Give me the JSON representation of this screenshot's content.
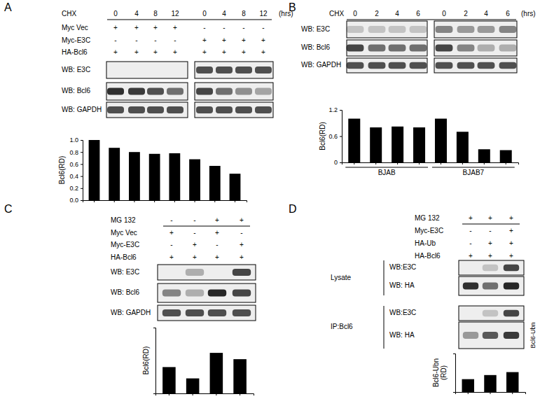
{
  "chart_data": [
    {
      "type": "bar",
      "ylabel": "Bcl6(RD)",
      "categories": [
        null,
        null,
        null,
        null,
        null,
        null,
        null,
        null
      ],
      "values": [
        1.0,
        0.87,
        0.8,
        0.77,
        0.78,
        0.68,
        0.57,
        0.44
      ],
      "color": "#000000",
      "ylim": [
        0,
        1
      ],
      "yticks": [
        {
          "value": 0,
          "label": "0.0"
        },
        0.2,
        0.4,
        0.6,
        0.8,
        {
          "value": 1,
          "label": "1.0"
        }
      ]
    },
    {
      "type": "bar",
      "ylabel": "Bcl6(RD)",
      "categories": [
        null,
        null,
        null,
        null,
        null,
        null,
        null,
        null
      ],
      "values": [
        1.0,
        0.8,
        0.82,
        0.8,
        1.0,
        0.7,
        0.3,
        0.28
      ],
      "color": "#000000",
      "ylim": [
        0,
        1.2
      ],
      "yticks": [
        0,
        0.6,
        1.2
      ]
    },
    {
      "type": "bar",
      "ylabel": "Bcl6(RD)",
      "categories": [
        null,
        null,
        null,
        null
      ],
      "values": [
        1.0,
        0.57,
        1.54,
        1.3
      ],
      "color": "#000000",
      "ylim": [
        0,
        2.5
      ],
      "yticks": [],
      "tick_labels": false
    },
    {
      "type": "bar",
      "ylabel": "Bcl6-Ubn (RD)",
      "categories": [
        null,
        null,
        null
      ],
      "values": [
        1.0,
        1.32,
        1.55
      ],
      "color": "#000000",
      "ylim": [
        0,
        3
      ],
      "yticks": [],
      "tick_labels": false
    }
  ],
  "figure": {
    "panels": [
      {
        "letter": "A",
        "header": {
          "label": "CHX",
          "values": [
            "0",
            "4",
            "8",
            "12",
            "0",
            "4",
            "8",
            "12"
          ],
          "unit": "(hrs)"
        },
        "rows": [
          {
            "label": "Myc Vec",
            "marks": [
              "+",
              "+",
              "+",
              "+",
              "-",
              "-",
              "-",
              "-"
            ]
          },
          {
            "label": "Myc-E3C",
            "marks": [
              "-",
              "-",
              "-",
              "-",
              "+",
              "+",
              "+",
              "+"
            ]
          },
          {
            "label": "HA-Bcl6",
            "marks": [
              "+",
              "+",
              "+",
              "+",
              "+",
              "+",
              "+",
              "+"
            ]
          }
        ],
        "blots": [
          "WB: E3C",
          "WB: Bcl6",
          "WB: GAPDH"
        ]
      },
      {
        "letter": "B",
        "header": {
          "label": "CHX",
          "values": [
            "0",
            "2",
            "4",
            "6",
            "0",
            "2",
            "4",
            "6"
          ],
          "unit": "(hrs)"
        },
        "blots": [
          "WB: E3C",
          "WB: Bcl6",
          "WB: GAPDH"
        ],
        "groups": [
          "BJAB",
          "BJAB7"
        ]
      },
      {
        "letter": "C",
        "header": {
          "label": "MG 132",
          "values": [
            "-",
            "-",
            "+",
            "+"
          ]
        },
        "rows": [
          {
            "label": "Myc Vec",
            "marks": [
              "+",
              "-",
              "+",
              "-"
            ]
          },
          {
            "label": "Myc-E3C",
            "marks": [
              "-",
              "+",
              "-",
              "+"
            ]
          },
          {
            "label": "HA-Bcl6",
            "marks": [
              "+",
              "+",
              "+",
              "+"
            ]
          }
        ],
        "blots": [
          "WB: E3C",
          "WB: Bcl6",
          "WB: GAPDH"
        ]
      },
      {
        "letter": "D",
        "header": {
          "label": "MG 132",
          "values": [
            "+",
            "+",
            "+"
          ]
        },
        "rows": [
          {
            "label": "Myc-E3C",
            "marks": [
              "-",
              "-",
              "+"
            ]
          },
          {
            "label": "HA-Ub",
            "marks": [
              "-",
              "+",
              "+"
            ]
          },
          {
            "label": "HA-Bcl6",
            "marks": [
              "+",
              "+",
              "+"
            ]
          }
        ],
        "sections": [
          {
            "label": "Lysate",
            "blots": [
              "WB:E3C",
              "WB: HA"
            ]
          },
          {
            "label": "IP:Bcl6",
            "blots": [
              "WB:E3C",
              "WB: HA"
            ],
            "side": "Bcl6-Ubn"
          }
        ]
      }
    ]
  }
}
